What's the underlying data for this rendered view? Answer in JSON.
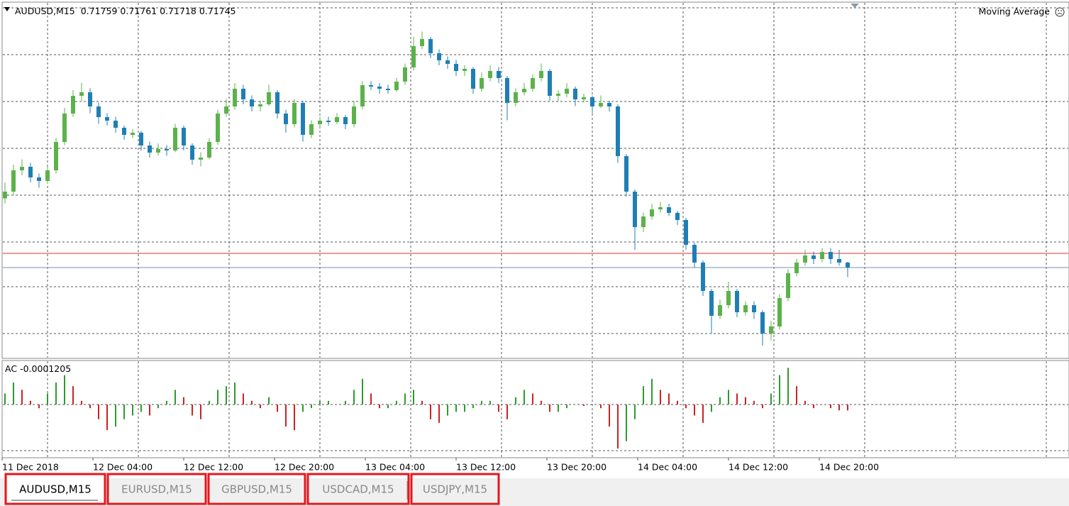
{
  "chart_data": {
    "type": "candlestick",
    "title": "AUDUSD,M15",
    "indicator": "Moving Average",
    "ylim": [
      0.71489,
      0.72489
    ],
    "open": [
      0.7194,
      0.71959,
      0.72019,
      0.72029,
      0.71999,
      0.71989,
      0.72019,
      0.72099,
      0.72179,
      0.72229,
      0.72239,
      0.72199,
      0.72169,
      0.72159,
      0.72139,
      0.72119,
      0.72125,
      0.72089,
      0.72069,
      0.72079,
      0.72075,
      0.72139,
      0.72089,
      0.72049,
      0.72055,
      0.72099,
      0.72179,
      0.72199,
      0.72249,
      0.72219,
      0.72199,
      0.72205,
      0.72239,
      0.72179,
      0.72149,
      0.72209,
      0.72119,
      0.72149,
      0.72159,
      0.72155,
      0.72169,
      0.72149,
      0.72199,
      0.72259,
      0.72255,
      0.72249,
      0.72245,
      0.72269,
      0.72309,
      0.72369,
      0.72389,
      0.72349,
      0.72329,
      0.72319,
      0.72299,
      0.72305,
      0.72249,
      0.72279,
      0.72299,
      0.72279,
      0.72209,
      0.72239,
      0.72249,
      0.72279,
      0.72299,
      0.72229,
      0.72235,
      0.72249,
      0.72219,
      0.72225,
      0.72199,
      0.72209,
      0.72199,
      0.72059,
      0.71959,
      0.71859,
      0.71889,
      0.71909,
      0.71915,
      0.71899,
      0.71879,
      0.71809,
      0.71759,
      0.71679,
      0.71609,
      0.71639,
      0.71679,
      0.71619,
      0.71639,
      0.71619,
      0.71559,
      0.71579,
      0.71659,
      0.71729,
      0.71759,
      0.71779,
      0.71769,
      0.71789,
      0.71769,
      0.71759
    ],
    "high": [
      0.71985,
      0.72035,
      0.7205,
      0.7204,
      0.7201,
      0.7203,
      0.7211,
      0.72195,
      0.72245,
      0.72265,
      0.7225,
      0.7221,
      0.7218,
      0.7217,
      0.72145,
      0.72135,
      0.7213,
      0.721,
      0.72095,
      0.7209,
      0.7215,
      0.72145,
      0.72095,
      0.7207,
      0.7211,
      0.7219,
      0.7222,
      0.72265,
      0.7226,
      0.7223,
      0.72215,
      0.7226,
      0.72245,
      0.7219,
      0.7222,
      0.72215,
      0.7216,
      0.7217,
      0.7217,
      0.7218,
      0.72175,
      0.72215,
      0.7227,
      0.7227,
      0.72265,
      0.7226,
      0.7228,
      0.7232,
      0.72395,
      0.7241,
      0.72395,
      0.7236,
      0.7234,
      0.7233,
      0.72315,
      0.7231,
      0.72295,
      0.72315,
      0.7231,
      0.72285,
      0.7225,
      0.72265,
      0.7229,
      0.7232,
      0.72305,
      0.72245,
      0.72265,
      0.72255,
      0.72235,
      0.7223,
      0.7223,
      0.72215,
      0.72205,
      0.72065,
      0.71965,
      0.719,
      0.71925,
      0.7193,
      0.71925,
      0.71905,
      0.71885,
      0.71815,
      0.71765,
      0.71685,
      0.71655,
      0.71705,
      0.71685,
      0.7165,
      0.7165,
      0.71625,
      0.71595,
      0.7167,
      0.7174,
      0.7177,
      0.71795,
      0.7179,
      0.718,
      0.718,
      0.71795,
      0.71761
    ],
    "low": [
      0.71925,
      0.7195,
      0.72005,
      0.71985,
      0.7197,
      0.7198,
      0.7201,
      0.7209,
      0.7217,
      0.72215,
      0.7218,
      0.7215,
      0.72145,
      0.72125,
      0.72105,
      0.7211,
      0.72075,
      0.72055,
      0.7206,
      0.7206,
      0.7207,
      0.72075,
      0.72035,
      0.7203,
      0.7205,
      0.7209,
      0.7217,
      0.7219,
      0.72205,
      0.72185,
      0.72185,
      0.722,
      0.72165,
      0.72125,
      0.7214,
      0.721,
      0.7211,
      0.7214,
      0.72145,
      0.7215,
      0.72135,
      0.7214,
      0.7219,
      0.72245,
      0.72235,
      0.72235,
      0.7224,
      0.7226,
      0.723,
      0.7236,
      0.72335,
      0.72315,
      0.72305,
      0.72285,
      0.72285,
      0.72235,
      0.7224,
      0.7227,
      0.72265,
      0.7216,
      0.722,
      0.7223,
      0.7224,
      0.7227,
      0.72215,
      0.72215,
      0.72225,
      0.722,
      0.7221,
      0.7218,
      0.72195,
      0.72185,
      0.7204,
      0.71945,
      0.71795,
      0.71845,
      0.7188,
      0.719,
      0.7189,
      0.71865,
      0.71795,
      0.71745,
      0.71665,
      0.7156,
      0.716,
      0.7163,
      0.71605,
      0.7161,
      0.716,
      0.71525,
      0.7154,
      0.7157,
      0.7165,
      0.7172,
      0.7175,
      0.71755,
      0.7176,
      0.71755,
      0.7175,
      0.71718
    ],
    "close": [
      0.71959,
      0.72019,
      0.72029,
      0.71999,
      0.71989,
      0.72019,
      0.72099,
      0.72179,
      0.72229,
      0.72239,
      0.72199,
      0.72169,
      0.72159,
      0.72139,
      0.72119,
      0.72125,
      0.72089,
      0.72069,
      0.72079,
      0.72075,
      0.72139,
      0.72089,
      0.72049,
      0.72055,
      0.72099,
      0.72179,
      0.72199,
      0.72249,
      0.72219,
      0.72199,
      0.72205,
      0.72239,
      0.72179,
      0.72149,
      0.72209,
      0.72119,
      0.72149,
      0.72159,
      0.72155,
      0.72169,
      0.72149,
      0.72199,
      0.72259,
      0.72255,
      0.72249,
      0.72245,
      0.72269,
      0.72309,
      0.72369,
      0.72389,
      0.72349,
      0.72329,
      0.72319,
      0.72299,
      0.72305,
      0.72249,
      0.72279,
      0.72299,
      0.72279,
      0.72209,
      0.72239,
      0.72249,
      0.72279,
      0.72299,
      0.72229,
      0.72235,
      0.72249,
      0.72219,
      0.72225,
      0.72199,
      0.72209,
      0.72199,
      0.72059,
      0.71959,
      0.71859,
      0.71889,
      0.71909,
      0.71915,
      0.71899,
      0.71879,
      0.71809,
      0.71759,
      0.71679,
      0.71609,
      0.71639,
      0.71679,
      0.71619,
      0.71639,
      0.71619,
      0.71559,
      0.71579,
      0.71659,
      0.71729,
      0.71759,
      0.71779,
      0.71769,
      0.71789,
      0.71769,
      0.71759,
      0.71745
    ],
    "ask_line": 0.71785,
    "up_color": "#5cb24a",
    "down_color": "#1f7fb4",
    "xlim": [
      0,
      94
    ],
    "xticks": [
      {
        "value": 0,
        "label": "11 Dec 2018"
      },
      {
        "value": 8,
        "label": "12 Dec 04:00"
      },
      {
        "value": 16,
        "label": "12 Dec 12:00"
      },
      {
        "value": 24,
        "label": "12 Dec 20:00"
      },
      {
        "value": 32,
        "label": "13 Dec 04:00"
      },
      {
        "value": 40,
        "label": "13 Dec 12:00"
      },
      {
        "value": 48,
        "label": "13 Dec 20:00"
      },
      {
        "value": 56,
        "label": "14 Dec 04:00"
      },
      {
        "value": 64,
        "label": "14 Dec 12:00"
      },
      {
        "value": 72,
        "label": "14 Dec 20:00"
      }
    ],
    "ac": {
      "name": "AC",
      "up_color": "#2e9a2e",
      "down_color": "#cc2222",
      "values": [
        0.000225,
        0.00045,
        0.0003,
        7.5e-05,
        -7.5e-05,
        0.000225,
        0.00045,
        0.0006,
        0.000375,
        7.5e-05,
        -7.5e-05,
        -0.0003,
        -0.000525,
        -0.00045,
        -0.0003,
        -0.000225,
        -0.00015,
        -0.000225,
        -7.5e-05,
        7.5e-05,
        0.0003,
        0.00015,
        -0.000225,
        -0.0003,
        7.5e-05,
        0.0003,
        0.000375,
        0.00045,
        0.000225,
        7.5e-05,
        -7.5e-05,
        0.00015,
        -0.00015,
        -0.00045,
        -0.000525,
        -0.00015,
        -7.5e-05,
        7.5e-05,
        7.5e-05,
        0,
        7.5e-05,
        0.0003,
        0.000525,
        0.000225,
        -7.5e-05,
        -7.5e-05,
        7.5e-05,
        0.000225,
        0.0003,
        7.5e-05,
        -0.0003,
        -0.000375,
        -0.000225,
        -0.00015,
        -0.00015,
        -7.5e-05,
        7.5e-05,
        7.5e-05,
        -0.00015,
        -0.0003,
        0.00015,
        0.0003,
        0.000225,
        7.5e-05,
        -0.00015,
        -0.00015,
        -7.5e-05,
        0,
        -3e-05,
        0,
        -7.5e-05,
        -0.00045,
        -0.0009,
        -0.00075,
        -0.0003,
        0.000375,
        0.000525,
        0.0003,
        0.000225,
        7.5e-05,
        -7.5e-05,
        -0.000225,
        -0.000375,
        -0.00015,
        0.00015,
        0.0003,
        0.000225,
        0.00015,
        7.5e-05,
        -7.5e-05,
        0.000225,
        0.0006,
        0.00075,
        0.000375,
        7.5e-05,
        -7.5e-05,
        0,
        -7.5e-05,
        -0.00012,
        -0.0001205
      ]
    }
  },
  "tabs": [
    "AUDUSD,M15",
    "EURUSD,M15",
    "GBPUSD,M15",
    "USDCAD,M15",
    "USDJPY,M15"
  ]
}
